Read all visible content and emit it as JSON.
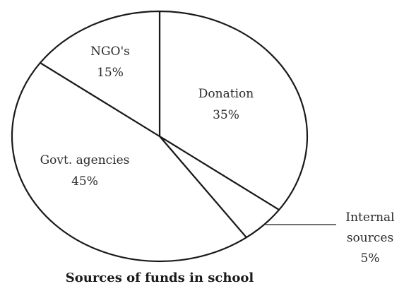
{
  "chart_data": {
    "type": "pie",
    "title": "Sources of funds in school",
    "slices": [
      {
        "label": "Donation",
        "percent_text": "35%",
        "value": 35
      },
      {
        "label": "Internal sources",
        "label_lines": [
          "Internal",
          "sources"
        ],
        "percent_text": "5%",
        "value": 5
      },
      {
        "label": "Govt. agencies",
        "percent_text": "45%",
        "value": 45
      },
      {
        "label": "NGO's",
        "percent_text": "15%",
        "value": 15
      }
    ],
    "start_angle": "12 o'clock",
    "direction": "clockwise",
    "legend": "none",
    "colors": {
      "fill": "#ffffff",
      "stroke": "#1a1a1a"
    }
  }
}
